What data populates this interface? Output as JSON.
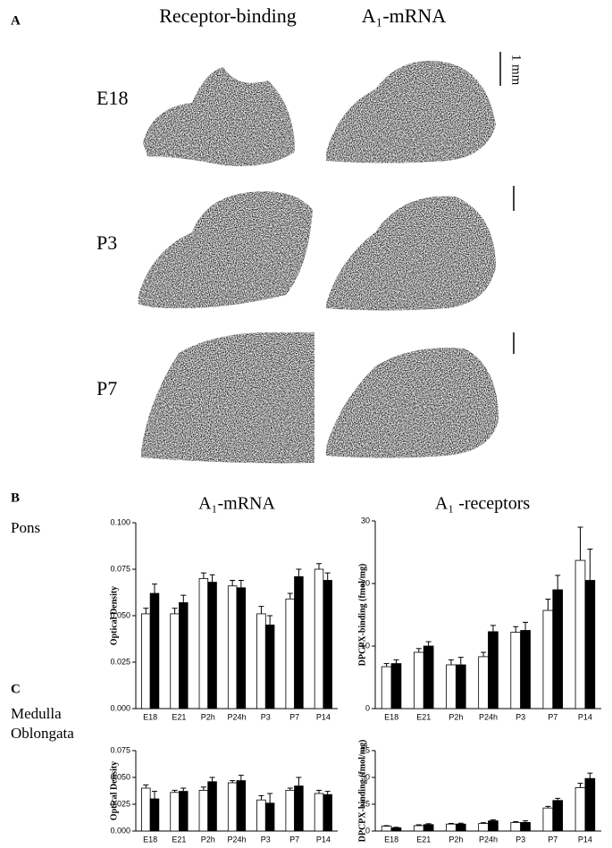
{
  "figure": {
    "panel_labels": [
      "A",
      "B",
      "C"
    ],
    "column_headers": [
      "Receptor-binding",
      "A₁-mRNA"
    ],
    "row_labels": [
      "E18",
      "P3",
      "P7"
    ],
    "scale_label": "1 mm",
    "region_labels": [
      "Pons",
      "Medulla",
      "Oblongata"
    ]
  },
  "chart_data": [
    {
      "type": "bar",
      "title": "A₁-mRNA",
      "y_label": "Optical Density",
      "categories": [
        "E18",
        "E21",
        "P2h",
        "P24h",
        "P3",
        "P7",
        "P14"
      ],
      "series": [
        {
          "color": "#ffffff",
          "values": [
            0.051,
            0.051,
            0.07,
            0.066,
            0.051,
            0.059,
            0.075
          ],
          "errors": [
            0.003,
            0.003,
            0.003,
            0.003,
            0.004,
            0.003,
            0.003
          ]
        },
        {
          "color": "#000000",
          "values": [
            0.062,
            0.057,
            0.068,
            0.065,
            0.045,
            0.071,
            0.069
          ],
          "errors": [
            0.005,
            0.004,
            0.004,
            0.004,
            0.005,
            0.004,
            0.004
          ]
        }
      ],
      "ylim": [
        0,
        0.1
      ],
      "yticks": [
        {
          "value": 0,
          "label": "0.000"
        },
        {
          "value": 0.025,
          "label": "0.025"
        },
        {
          "value": 0.05,
          "label": "0.050"
        },
        {
          "value": 0.075,
          "label": "0.075"
        },
        {
          "value": 0.1,
          "label": "0.100"
        }
      ]
    },
    {
      "type": "bar",
      "title": "A₁ -receptors",
      "y_label": "DPCPX-binding (fmol/mg)",
      "categories": [
        "E18",
        "E21",
        "P2h",
        "P24h",
        "P3",
        "P7",
        "P14"
      ],
      "series": [
        {
          "color": "#ffffff",
          "values": [
            6.7,
            9.0,
            7.0,
            8.3,
            12.2,
            15.7,
            23.7
          ],
          "errors": [
            0.5,
            0.6,
            0.8,
            0.7,
            0.9,
            1.8,
            5.3
          ]
        },
        {
          "color": "#000000",
          "values": [
            7.2,
            10.0,
            7.0,
            12.3,
            12.5,
            19.0,
            20.5
          ],
          "errors": [
            0.6,
            0.7,
            1.2,
            1.0,
            1.3,
            2.3,
            5.0
          ]
        }
      ],
      "ylim": [
        0,
        30
      ],
      "yticks": [
        0,
        10,
        20,
        30
      ]
    },
    {
      "type": "bar",
      "y_label": "Optical Density",
      "categories": [
        "E18",
        "E21",
        "P2h",
        "P24h",
        "P3",
        "P7",
        "P14"
      ],
      "series": [
        {
          "color": "#ffffff",
          "values": [
            0.04,
            0.036,
            0.038,
            0.045,
            0.029,
            0.038,
            0.035
          ],
          "errors": [
            0.003,
            0.002,
            0.003,
            0.002,
            0.004,
            0.002,
            0.003
          ]
        },
        {
          "color": "#000000",
          "values": [
            0.03,
            0.037,
            0.046,
            0.047,
            0.026,
            0.042,
            0.034
          ],
          "errors": [
            0.007,
            0.003,
            0.004,
            0.005,
            0.009,
            0.008,
            0.003
          ]
        }
      ],
      "ylim": [
        0,
        0.075
      ],
      "yticks": [
        {
          "value": 0,
          "label": "0.000"
        },
        {
          "value": 0.025,
          "label": "0.025"
        },
        {
          "value": 0.05,
          "label": "0.050"
        },
        {
          "value": 0.075,
          "label": "0.075"
        }
      ]
    },
    {
      "type": "bar",
      "y_label": "DPCPX-binding (fmol/mg)",
      "categories": [
        "E18",
        "E21",
        "P2h",
        "P24h",
        "P3",
        "P7",
        "P14"
      ],
      "series": [
        {
          "color": "#ffffff",
          "values": [
            4.5,
            5.0,
            6.5,
            7.0,
            8.0,
            21.5,
            40.5
          ],
          "errors": [
            0.5,
            0.8,
            0.6,
            0.8,
            0.8,
            1.5,
            4.0
          ]
        },
        {
          "color": "#000000",
          "values": [
            3.0,
            6.0,
            6.5,
            9.5,
            8.0,
            28.5,
            49.0
          ],
          "errors": [
            0.5,
            0.8,
            0.8,
            1.0,
            1.5,
            2.0,
            5.0
          ]
        }
      ],
      "ylim": [
        0,
        75
      ],
      "yticks": [
        0,
        25,
        50,
        75
      ]
    }
  ]
}
